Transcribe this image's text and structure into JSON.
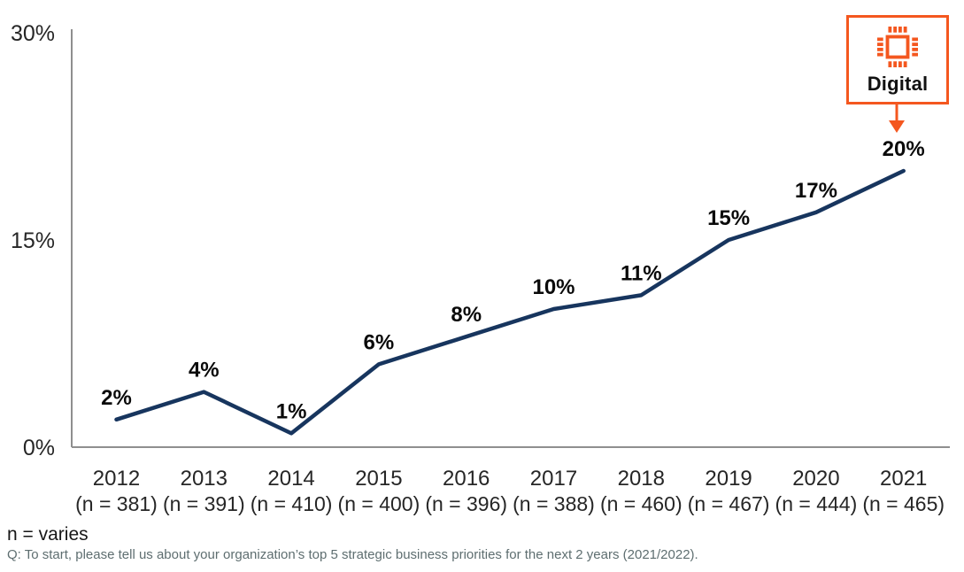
{
  "chart_data": {
    "type": "line",
    "title": "",
    "xlabel": "",
    "ylabel": "",
    "categories": [
      "2012",
      "2013",
      "2014",
      "2015",
      "2016",
      "2017",
      "2018",
      "2019",
      "2020",
      "2021"
    ],
    "n_labels": [
      "(n = 381)",
      "(n = 391)",
      "(n = 410)",
      "(n = 400)",
      "(n = 396)",
      "(n = 388)",
      "(n = 460)",
      "(n = 467)",
      "(n = 444)",
      "(n = 465)"
    ],
    "values": [
      2,
      4,
      1,
      6,
      8,
      10,
      11,
      15,
      17,
      20
    ],
    "value_labels": [
      "2%",
      "4%",
      "1%",
      "6%",
      "8%",
      "10%",
      "11%",
      "15%",
      "17%",
      "20%"
    ],
    "ylim": [
      0,
      30
    ],
    "yticks": {
      "values": [
        0,
        15,
        30
      ],
      "labels": [
        "0%",
        "15%",
        "30%"
      ]
    },
    "grid": false,
    "legend": "none",
    "line_color": "#17355E",
    "axis_color": "#8f8f8f",
    "label_color": "#0a0a0a",
    "tick_color": "#262626"
  },
  "annotation": {
    "label": "Digital",
    "icon": "chip-icon",
    "accent_color": "#F4571F"
  },
  "notes": {
    "sample_size": "n = varies",
    "question": "Q: To start, please tell us about your organization’s top 5 strategic business priorities for the next 2 years (2021/2022)."
  }
}
